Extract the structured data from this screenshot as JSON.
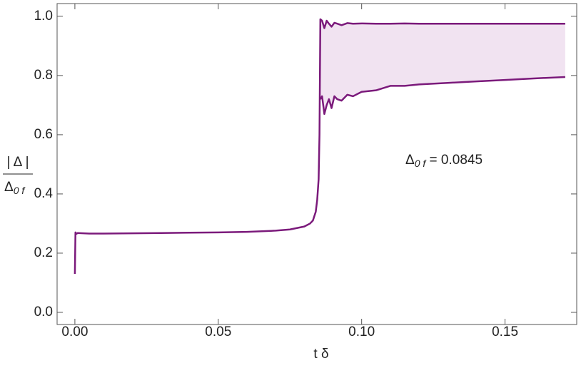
{
  "chart_data": {
    "type": "line",
    "x_label": "t δ",
    "y_label": {
      "numerator": "| Δ |",
      "denominator": "Δ",
      "denominator_sub": "0 f"
    },
    "annotation": {
      "text": "Δ",
      "sub": "0 f",
      "rest": " = 0.0845"
    },
    "x": [
      0,
      0.0002,
      0.0005,
      0.001,
      0.005,
      0.01,
      0.02,
      0.03,
      0.04,
      0.05,
      0.06,
      0.07,
      0.075,
      0.08,
      0.082,
      0.083,
      0.084,
      0.0845,
      0.085,
      0.0853,
      0.0856,
      0.0862,
      0.087,
      0.0878,
      0.0886,
      0.0895,
      0.0905,
      0.0915,
      0.093,
      0.095,
      0.097,
      0.1,
      0.105,
      0.11,
      0.115,
      0.12,
      0.13,
      0.14,
      0.15,
      0.16,
      0.171
    ],
    "series": [
      {
        "color": "#7b1a7b",
        "values": [
          0.13,
          0.27,
          0.265,
          0.268,
          0.266,
          0.266,
          0.267,
          0.268,
          0.269,
          0.27,
          0.272,
          0.276,
          0.28,
          0.29,
          0.3,
          0.31,
          0.34,
          0.38,
          0.45,
          0.6,
          0.99,
          0.985,
          0.96,
          0.985,
          0.975,
          0.965,
          0.978,
          0.975,
          0.97,
          0.977,
          0.975,
          0.976,
          0.975,
          0.975,
          0.976,
          0.975,
          0.975,
          0.975,
          0.975,
          0.975,
          0.975
        ]
      },
      {
        "color": "#7b1a7b",
        "values": [
          null,
          null,
          null,
          null,
          null,
          null,
          null,
          null,
          null,
          null,
          null,
          null,
          null,
          null,
          null,
          null,
          null,
          null,
          null,
          null,
          0.72,
          0.73,
          0.67,
          0.7,
          0.72,
          0.69,
          0.73,
          0.72,
          0.715,
          0.735,
          0.73,
          0.745,
          0.75,
          0.765,
          0.765,
          0.77,
          0.775,
          0.78,
          0.785,
          0.79,
          0.795
        ]
      }
    ],
    "band_color": "#f1e3f1",
    "xlim": [
      -0.0062,
      0.175
    ],
    "ylim": [
      -0.041,
      1.043
    ],
    "xticks": [
      {
        "value": 0,
        "label": "0.00"
      },
      0.05,
      {
        "value": 0.1,
        "label": "0.10"
      },
      0.15
    ],
    "yticks": [
      {
        "value": 0,
        "label": "0.0"
      },
      0.2,
      0.4,
      0.6,
      0.8,
      {
        "value": 1,
        "label": "1.0"
      }
    ]
  }
}
